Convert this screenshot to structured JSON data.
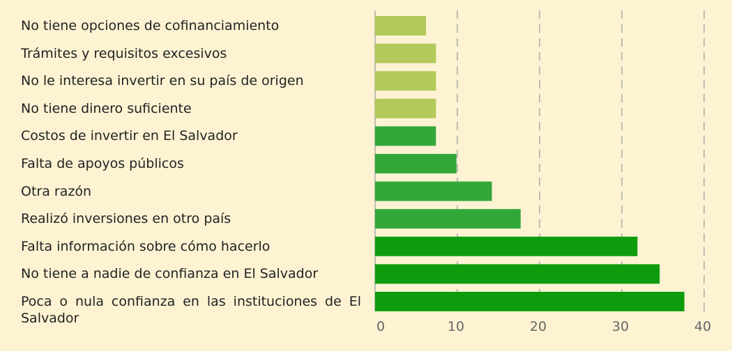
{
  "chart_data": {
    "type": "barh",
    "categories": [
      "No tiene opciones de cofinanciamiento",
      "Trámites y requisitos excesivos",
      "No le interesa invertir en su país de origen",
      "No tiene dinero suficiente",
      "Costos de invertir en El Salvador",
      "Falta de apoyos públicos",
      "Otra razón",
      "Realizó inversiones en otro país",
      "Falta información sobre cómo hacerlo",
      "No tiene a nadie de confianza en El Salvador",
      "Poca o nula confianza en las instituciones de El Salvador"
    ],
    "values": [
      6.2,
      7.4,
      7.4,
      7.4,
      7.4,
      9.9,
      14.2,
      17.7,
      31.9,
      34.6,
      37.6
    ],
    "colors": [
      "#b3c95a",
      "#b3c95a",
      "#b3c95a",
      "#b3c95a",
      "#33a839",
      "#33a839",
      "#33a839",
      "#33a839",
      "#0f9c0c",
      "#0f9c0c",
      "#0f9c0c"
    ],
    "xlim": [
      0,
      40
    ],
    "xticks": [
      0,
      10,
      20,
      30,
      40
    ],
    "grid": true
  }
}
